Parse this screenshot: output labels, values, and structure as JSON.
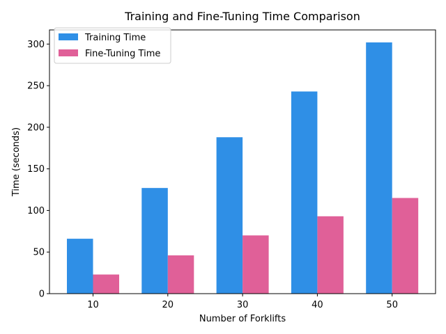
{
  "chart_data": {
    "type": "bar",
    "title": "Training and Fine-Tuning Time Comparison",
    "xlabel": "Number of Forklifts",
    "ylabel": "Time (seconds)",
    "categories": [
      "10",
      "20",
      "30",
      "40",
      "50"
    ],
    "series": [
      {
        "name": "Training Time",
        "values": [
          66,
          127,
          188,
          243,
          302
        ],
        "color": "#2f8fe6"
      },
      {
        "name": "Fine-Tuning Time",
        "values": [
          23,
          46,
          70,
          93,
          115
        ],
        "color": "#e06098"
      }
    ],
    "ylim": [
      0,
      317
    ],
    "yticks": [
      0,
      50,
      100,
      150,
      200,
      250,
      300
    ],
    "grid": false,
    "legend_position": "top-left"
  }
}
